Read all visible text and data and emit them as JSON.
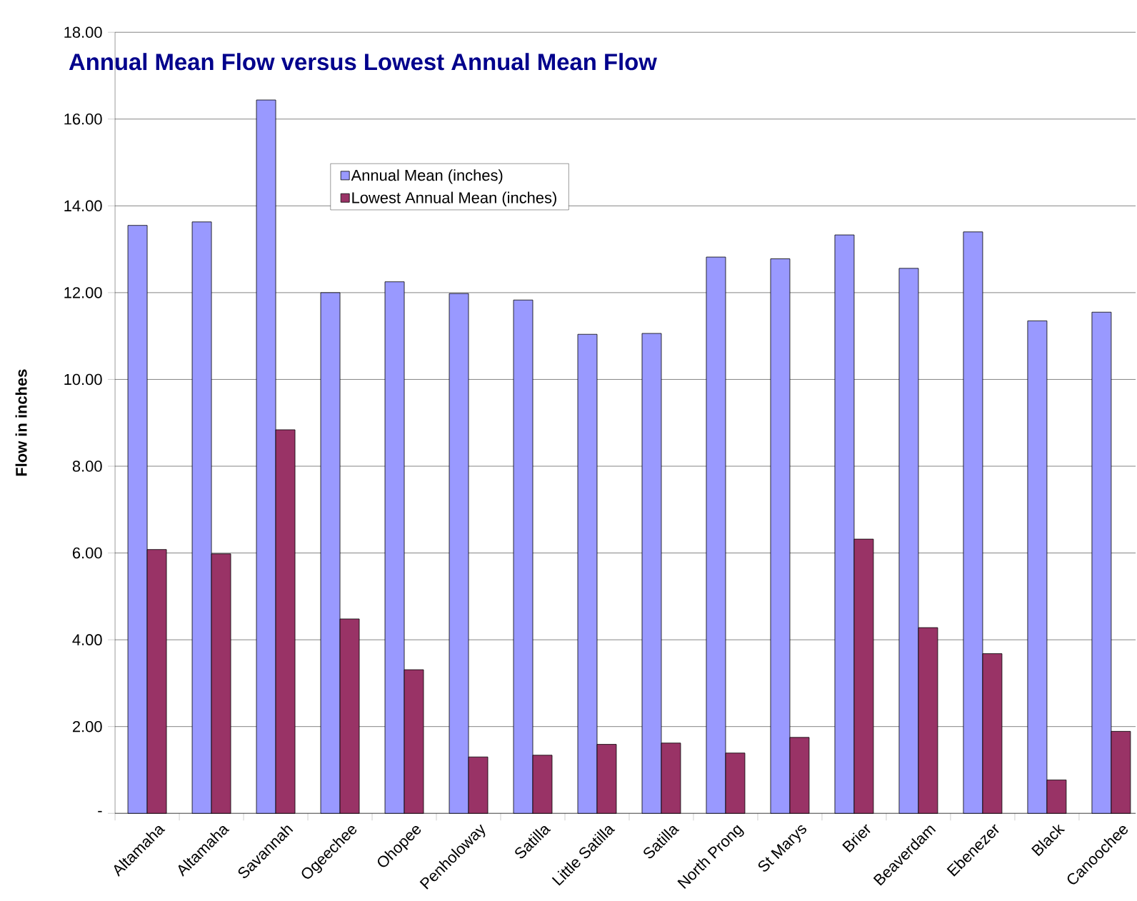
{
  "chart_data": {
    "type": "bar",
    "title": "Annual Mean Flow versus Lowest Annual Mean Flow",
    "ylabel": "Flow in inches",
    "categories": [
      "Altamaha",
      "Altamaha",
      "Savannah",
      "Ogeechee",
      "Ohopee",
      "Penholoway",
      "Satilla",
      "Little Satilla",
      "Satilla",
      "North Prong",
      "St Marys",
      "Brier",
      "Beaverdam",
      "Ebenezer",
      "Black",
      "Canoochee"
    ],
    "series": [
      {
        "name": "Annual Mean (inches)",
        "color": "#9999ff",
        "values": [
          13.55,
          13.63,
          16.44,
          12.0,
          12.25,
          11.98,
          11.83,
          11.04,
          11.06,
          12.82,
          12.78,
          13.33,
          12.56,
          13.4,
          11.35,
          11.55
        ]
      },
      {
        "name": "Lowest Annual Mean (inches)",
        "color": "#993366",
        "values": [
          6.08,
          5.98,
          8.84,
          4.48,
          3.31,
          1.3,
          1.34,
          1.59,
          1.62,
          1.39,
          1.75,
          6.32,
          4.28,
          3.68,
          0.77,
          1.89
        ]
      }
    ],
    "ylim": [
      0,
      18
    ],
    "yticks": [
      {
        "value": 0,
        "label": "-"
      },
      {
        "value": 2,
        "label": "2.00"
      },
      {
        "value": 4,
        "label": "4.00"
      },
      {
        "value": 6,
        "label": "6.00"
      },
      {
        "value": 8,
        "label": "8.00"
      },
      {
        "value": 10,
        "label": "10.00"
      },
      {
        "value": 12,
        "label": "12.00"
      },
      {
        "value": 14,
        "label": "14.00"
      },
      {
        "value": 16,
        "label": "16.00"
      },
      {
        "value": 18,
        "label": "18.00"
      }
    ],
    "grid": "y",
    "legend": "top"
  }
}
